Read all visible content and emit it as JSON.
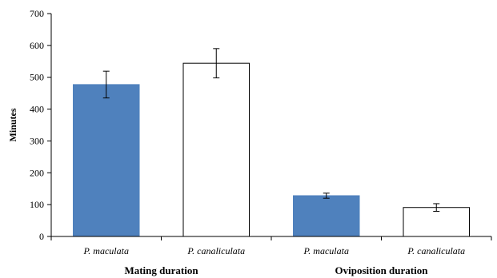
{
  "chart_data": {
    "type": "bar",
    "title": "",
    "ylabel": "Minutes",
    "xlabel": "",
    "ylim": [
      0,
      700
    ],
    "yticks": [
      0,
      100,
      200,
      300,
      400,
      500,
      600,
      700
    ],
    "grid": false,
    "groups": [
      "Mating duration",
      "Oviposition duration"
    ],
    "categories": [
      "P. maculata",
      "P. canaliculata",
      "P. maculata",
      "P. canaliculata"
    ],
    "bars": [
      {
        "group": "Mating duration",
        "category": "P. maculata",
        "value": 477,
        "error": 42,
        "color": "#4f81bd"
      },
      {
        "group": "Mating duration",
        "category": "P. canaliculata",
        "value": 544,
        "error": 46,
        "color": "#ffffff"
      },
      {
        "group": "Oviposition duration",
        "category": "P. maculata",
        "value": 128,
        "error": 8,
        "color": "#4f81bd"
      },
      {
        "group": "Oviposition duration",
        "category": "P. canaliculata",
        "value": 91,
        "error": 12,
        "color": "#ffffff"
      }
    ],
    "colors": {
      "maculata": "#4f81bd",
      "canaliculata": "#ffffff",
      "outline": "#000000"
    }
  }
}
